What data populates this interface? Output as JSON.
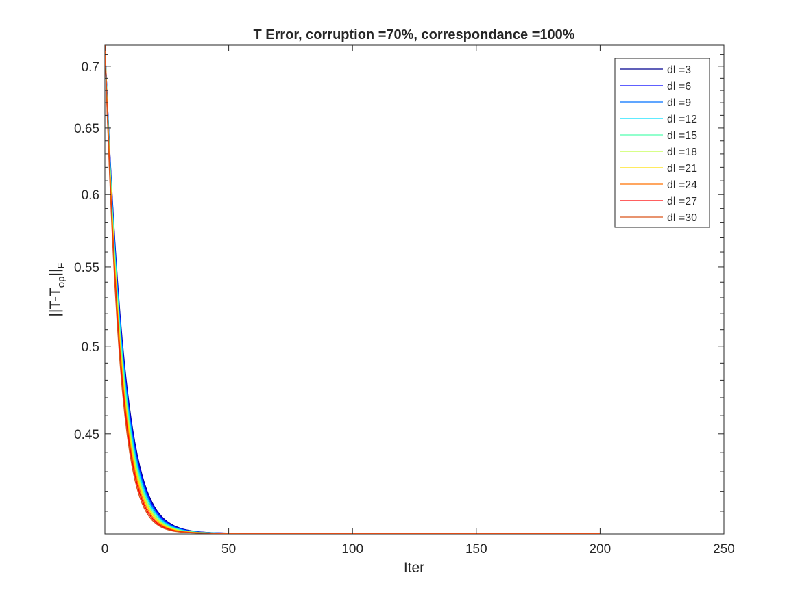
{
  "chart_data": {
    "type": "line",
    "title": "T Error, corruption =70%, correspondance =100%",
    "xlabel": "Iter",
    "ylabel": {
      "base": "||T-T",
      "sub": "op",
      "mid": "||",
      "sub2": "F"
    },
    "xlim": [
      0,
      250
    ],
    "ylim": [
      0.399,
      0.718
    ],
    "yscale": "log",
    "xticks": [
      0,
      50,
      100,
      150,
      200,
      250
    ],
    "yticks": [
      0.45,
      0.5,
      0.55,
      0.6,
      0.65,
      0.7
    ],
    "ytick_labels": [
      "0.45",
      "0.5",
      "0.55",
      "0.6",
      "0.65",
      "0.7"
    ],
    "xtick_labels": [
      "0",
      "50",
      "100",
      "150",
      "200",
      "250"
    ],
    "grid": false,
    "legend_position": "top-right",
    "model": {
      "start": 0.718,
      "floor": 0.3993,
      "iters": 200
    },
    "series": [
      {
        "name": "dl =3",
        "color": "#00008f",
        "decay_rate": 0.16
      },
      {
        "name": "dl =6",
        "color": "#0000ff",
        "decay_rate": 0.163
      },
      {
        "name": "dl =9",
        "color": "#0070ff",
        "decay_rate": 0.167
      },
      {
        "name": "dl =12",
        "color": "#00dfff",
        "decay_rate": 0.171
      },
      {
        "name": "dl =15",
        "color": "#50ffaf",
        "decay_rate": 0.176
      },
      {
        "name": "dl =18",
        "color": "#bfff40",
        "decay_rate": 0.181
      },
      {
        "name": "dl =21",
        "color": "#ffdf00",
        "decay_rate": 0.186
      },
      {
        "name": "dl =24",
        "color": "#ff7000",
        "decay_rate": 0.192
      },
      {
        "name": "dl =27",
        "color": "#ff0000",
        "decay_rate": 0.198
      },
      {
        "name": "dl =30",
        "color": "#d95319",
        "decay_rate": 0.205
      }
    ]
  }
}
